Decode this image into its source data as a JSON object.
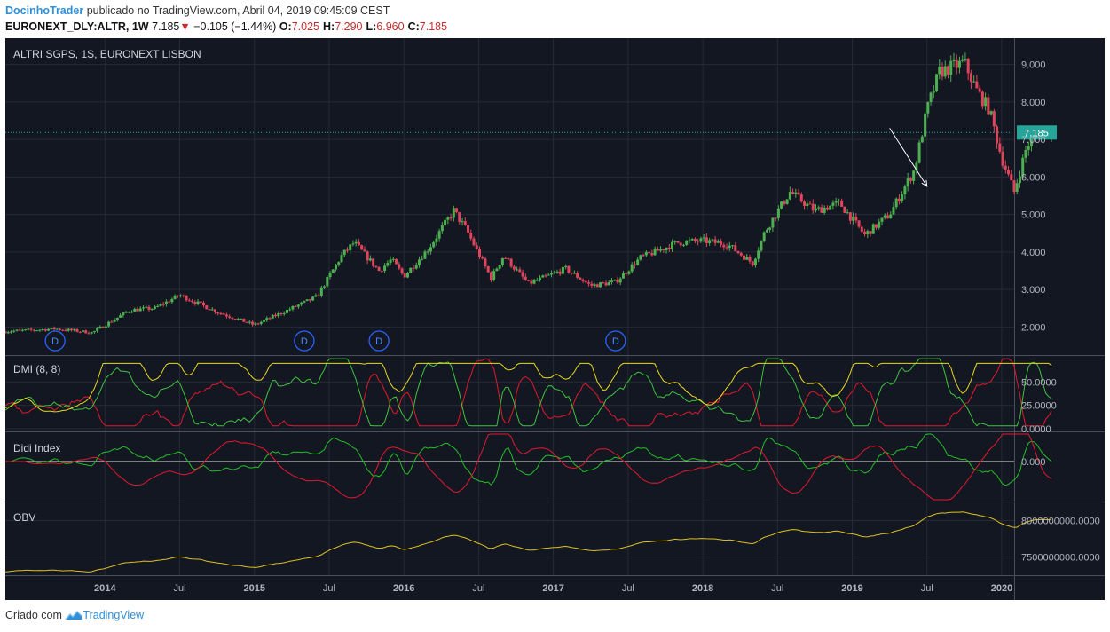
{
  "header": {
    "author": "DocinhoTrader",
    "published": "publicado no TradingView.com, Abril 04, 2019 09:45:09 CEST",
    "symbol": "EURONEXT_DLY:ALTR, 1W",
    "last": "7.185",
    "change_arrow": "▼",
    "change": "−0.105 (−1.44%)",
    "ohlc": {
      "o_label": "O:",
      "o": "7.025",
      "h_label": "H:",
      "h": "7.290",
      "l_label": "L:",
      "l": "6.960",
      "c_label": "C:",
      "c": "7.185"
    }
  },
  "footer": {
    "prefix": "Criado com",
    "brand": "TradingView",
    "logo_icon": "tradingview-logo-icon"
  },
  "colors": {
    "background": "#131722",
    "grid": "#252a37",
    "up": "#4caf50",
    "down": "#e0445b",
    "dmi_adx": "#e8d91e",
    "dmi_plus": "#3ec43e",
    "dmi_minus": "#e3182d",
    "didi_green": "#22c025",
    "didi_red": "#e3182d",
    "obv": "#e0c020",
    "price_line": "#26a69a",
    "axis_text": "#b2b5be",
    "dividend_marker": "#2962ff"
  },
  "chart_data": [
    {
      "type": "candlestick",
      "title": "ALTRI SGPS, 1S, EURONEXT LISBON",
      "timeframe": "1W",
      "x_axis": {
        "labels": [
          "2014",
          "Jul",
          "2015",
          "Jul",
          "2016",
          "Jul",
          "2017",
          "Jul",
          "2018",
          "Jul",
          "2019",
          "Jul",
          "2020"
        ],
        "range": [
          "2013-05",
          "2020-02"
        ]
      },
      "y_axis": {
        "labels": [
          "2.000",
          "3.000",
          "4.000",
          "5.000",
          "6.000",
          "7.000",
          "8.000",
          "9.000"
        ],
        "range": [
          1.25,
          9.7
        ]
      },
      "last_price_label": "7.185",
      "dividend_marker_label": "D",
      "dividend_markers": [
        "2013-09",
        "2015-05",
        "2015-11",
        "2017-06"
      ],
      "annotations": [
        {
          "type": "arrow",
          "from": [
            "2019-04",
            7.3
          ],
          "to": [
            "2019-07",
            5.75
          ]
        }
      ],
      "anchors": [
        [
          "2013-05",
          1.88
        ],
        [
          "2013-09",
          1.95
        ],
        [
          "2013-12",
          1.85
        ],
        [
          "2014-03",
          2.45
        ],
        [
          "2014-05",
          2.5
        ],
        [
          "2014-07",
          2.85
        ],
        [
          "2014-10",
          2.4
        ],
        [
          "2015-01",
          2.05
        ],
        [
          "2015-03",
          2.35
        ],
        [
          "2015-06",
          2.8
        ],
        [
          "2015-08",
          3.9
        ],
        [
          "2015-09",
          4.25
        ],
        [
          "2015-11",
          3.5
        ],
        [
          "2015-12",
          3.8
        ],
        [
          "2016-01",
          3.35
        ],
        [
          "2016-03",
          4.1
        ],
        [
          "2016-05",
          5.1
        ],
        [
          "2016-06",
          4.6
        ],
        [
          "2016-08",
          3.3
        ],
        [
          "2016-09",
          3.9
        ],
        [
          "2016-11",
          3.15
        ],
        [
          "2017-02",
          3.55
        ],
        [
          "2017-04",
          3.1
        ],
        [
          "2017-06",
          3.2
        ],
        [
          "2017-08",
          3.85
        ],
        [
          "2017-11",
          4.25
        ],
        [
          "2018-01",
          4.3
        ],
        [
          "2018-03",
          4.2
        ],
        [
          "2018-05",
          3.7
        ],
        [
          "2018-06",
          4.55
        ],
        [
          "2018-08",
          5.6
        ],
        [
          "2018-10",
          5.1
        ],
        [
          "2018-12",
          5.3
        ],
        [
          "2019-02",
          4.45
        ],
        [
          "2019-04",
          5.0
        ],
        [
          "2019-06",
          6.2
        ],
        [
          "2019-07",
          7.8
        ],
        [
          "2019-08",
          8.8
        ],
        [
          "2019-10",
          9.05
        ],
        [
          "2019-11",
          8.3
        ],
        [
          "2019-12",
          7.8
        ],
        [
          "2020-01",
          6.5
        ],
        [
          "2020-02",
          5.6
        ],
        [
          "2020-03",
          6.8
        ],
        [
          "2020-04",
          7.3
        ],
        [
          "2020-05",
          7.185
        ]
      ]
    },
    {
      "type": "line",
      "title": "DMI (8, 8)",
      "y_axis": {
        "labels": [
          "0.0000",
          "25.0000",
          "50.0000"
        ],
        "range": [
          -3,
          78
        ]
      },
      "series": [
        {
          "color": "#e8d91e"
        },
        {
          "color": "#3ec43e"
        },
        {
          "color": "#e3182d"
        }
      ]
    },
    {
      "type": "line",
      "title": "Didi Index",
      "y_axis": {
        "labels": [
          "0.000"
        ]
      },
      "series": [
        {
          "color": "#22c025"
        },
        {
          "color": "#e3182d"
        },
        {
          "color": "#e6e6e6"
        }
      ]
    },
    {
      "type": "line",
      "title": "OBV",
      "y_axis": {
        "labels": [
          "7500000000.0000",
          "8000000000.0000"
        ],
        "range": [
          7250000000,
          8250000000
        ]
      },
      "series": [
        {
          "color": "#e0c020"
        }
      ]
    }
  ]
}
